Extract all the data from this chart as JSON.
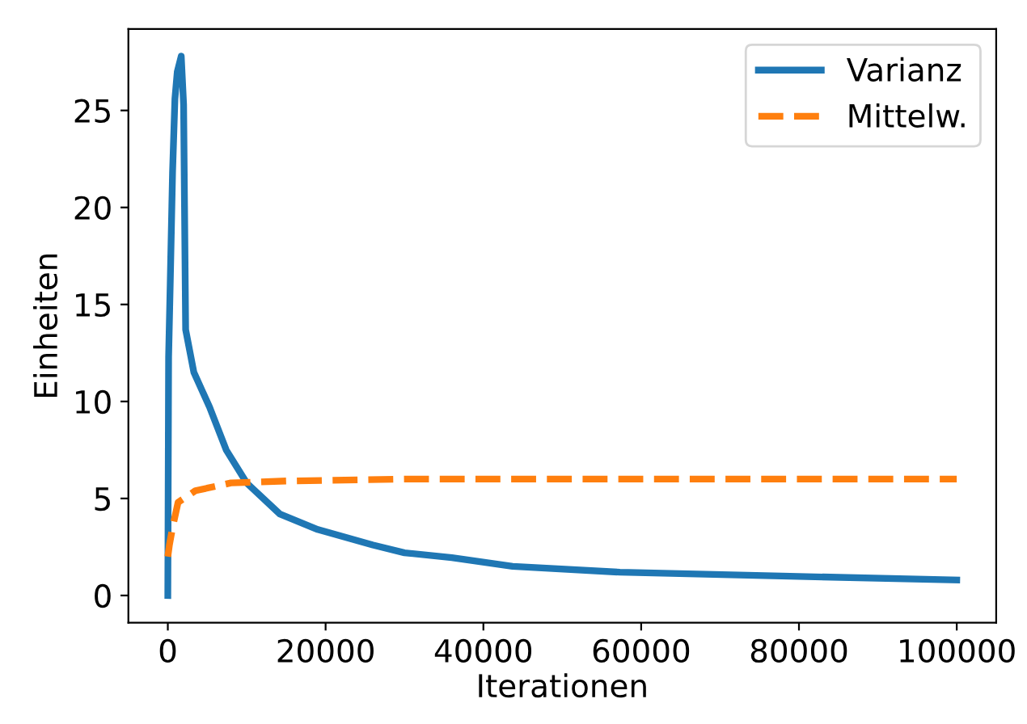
{
  "chart_data": {
    "type": "line",
    "xlabel": "Iterationen",
    "ylabel": "Einheiten",
    "xlim": [
      -5000,
      105000
    ],
    "ylim": [
      -1.4,
      29.2
    ],
    "xticks": [
      0,
      20000,
      40000,
      60000,
      80000,
      100000
    ],
    "yticks": [
      0,
      5,
      10,
      15,
      20,
      25
    ],
    "grid": false,
    "legend": "top right",
    "series": [
      {
        "name": "Varianz",
        "color": "#1f77b4",
        "line_style": "solid",
        "x": [
          0,
          100,
          300,
          600,
          900,
          1200,
          1700,
          2000,
          2260,
          3300,
          5300,
          7400,
          10000,
          14200,
          19000,
          26000,
          30000,
          36000,
          43700,
          57300,
          77800,
          100000
        ],
        "values": [
          0,
          12.3,
          16,
          21.8,
          25.6,
          27.0,
          27.8,
          25.3,
          13.7,
          11.5,
          9.7,
          7.5,
          5.8,
          4.2,
          3.4,
          2.6,
          2.2,
          1.95,
          1.5,
          1.2,
          1.0,
          0.8
        ]
      },
      {
        "name": "Mittelw.",
        "color": "#ff7f0e",
        "line_style": "dashed",
        "x": [
          0,
          200,
          600,
          1300,
          3500,
          8000,
          15000,
          30000,
          60000,
          80000,
          100000
        ],
        "values": [
          2.0,
          2.6,
          3.5,
          4.8,
          5.4,
          5.8,
          5.9,
          6.0,
          6.0,
          6.0,
          6.0
        ]
      }
    ]
  }
}
